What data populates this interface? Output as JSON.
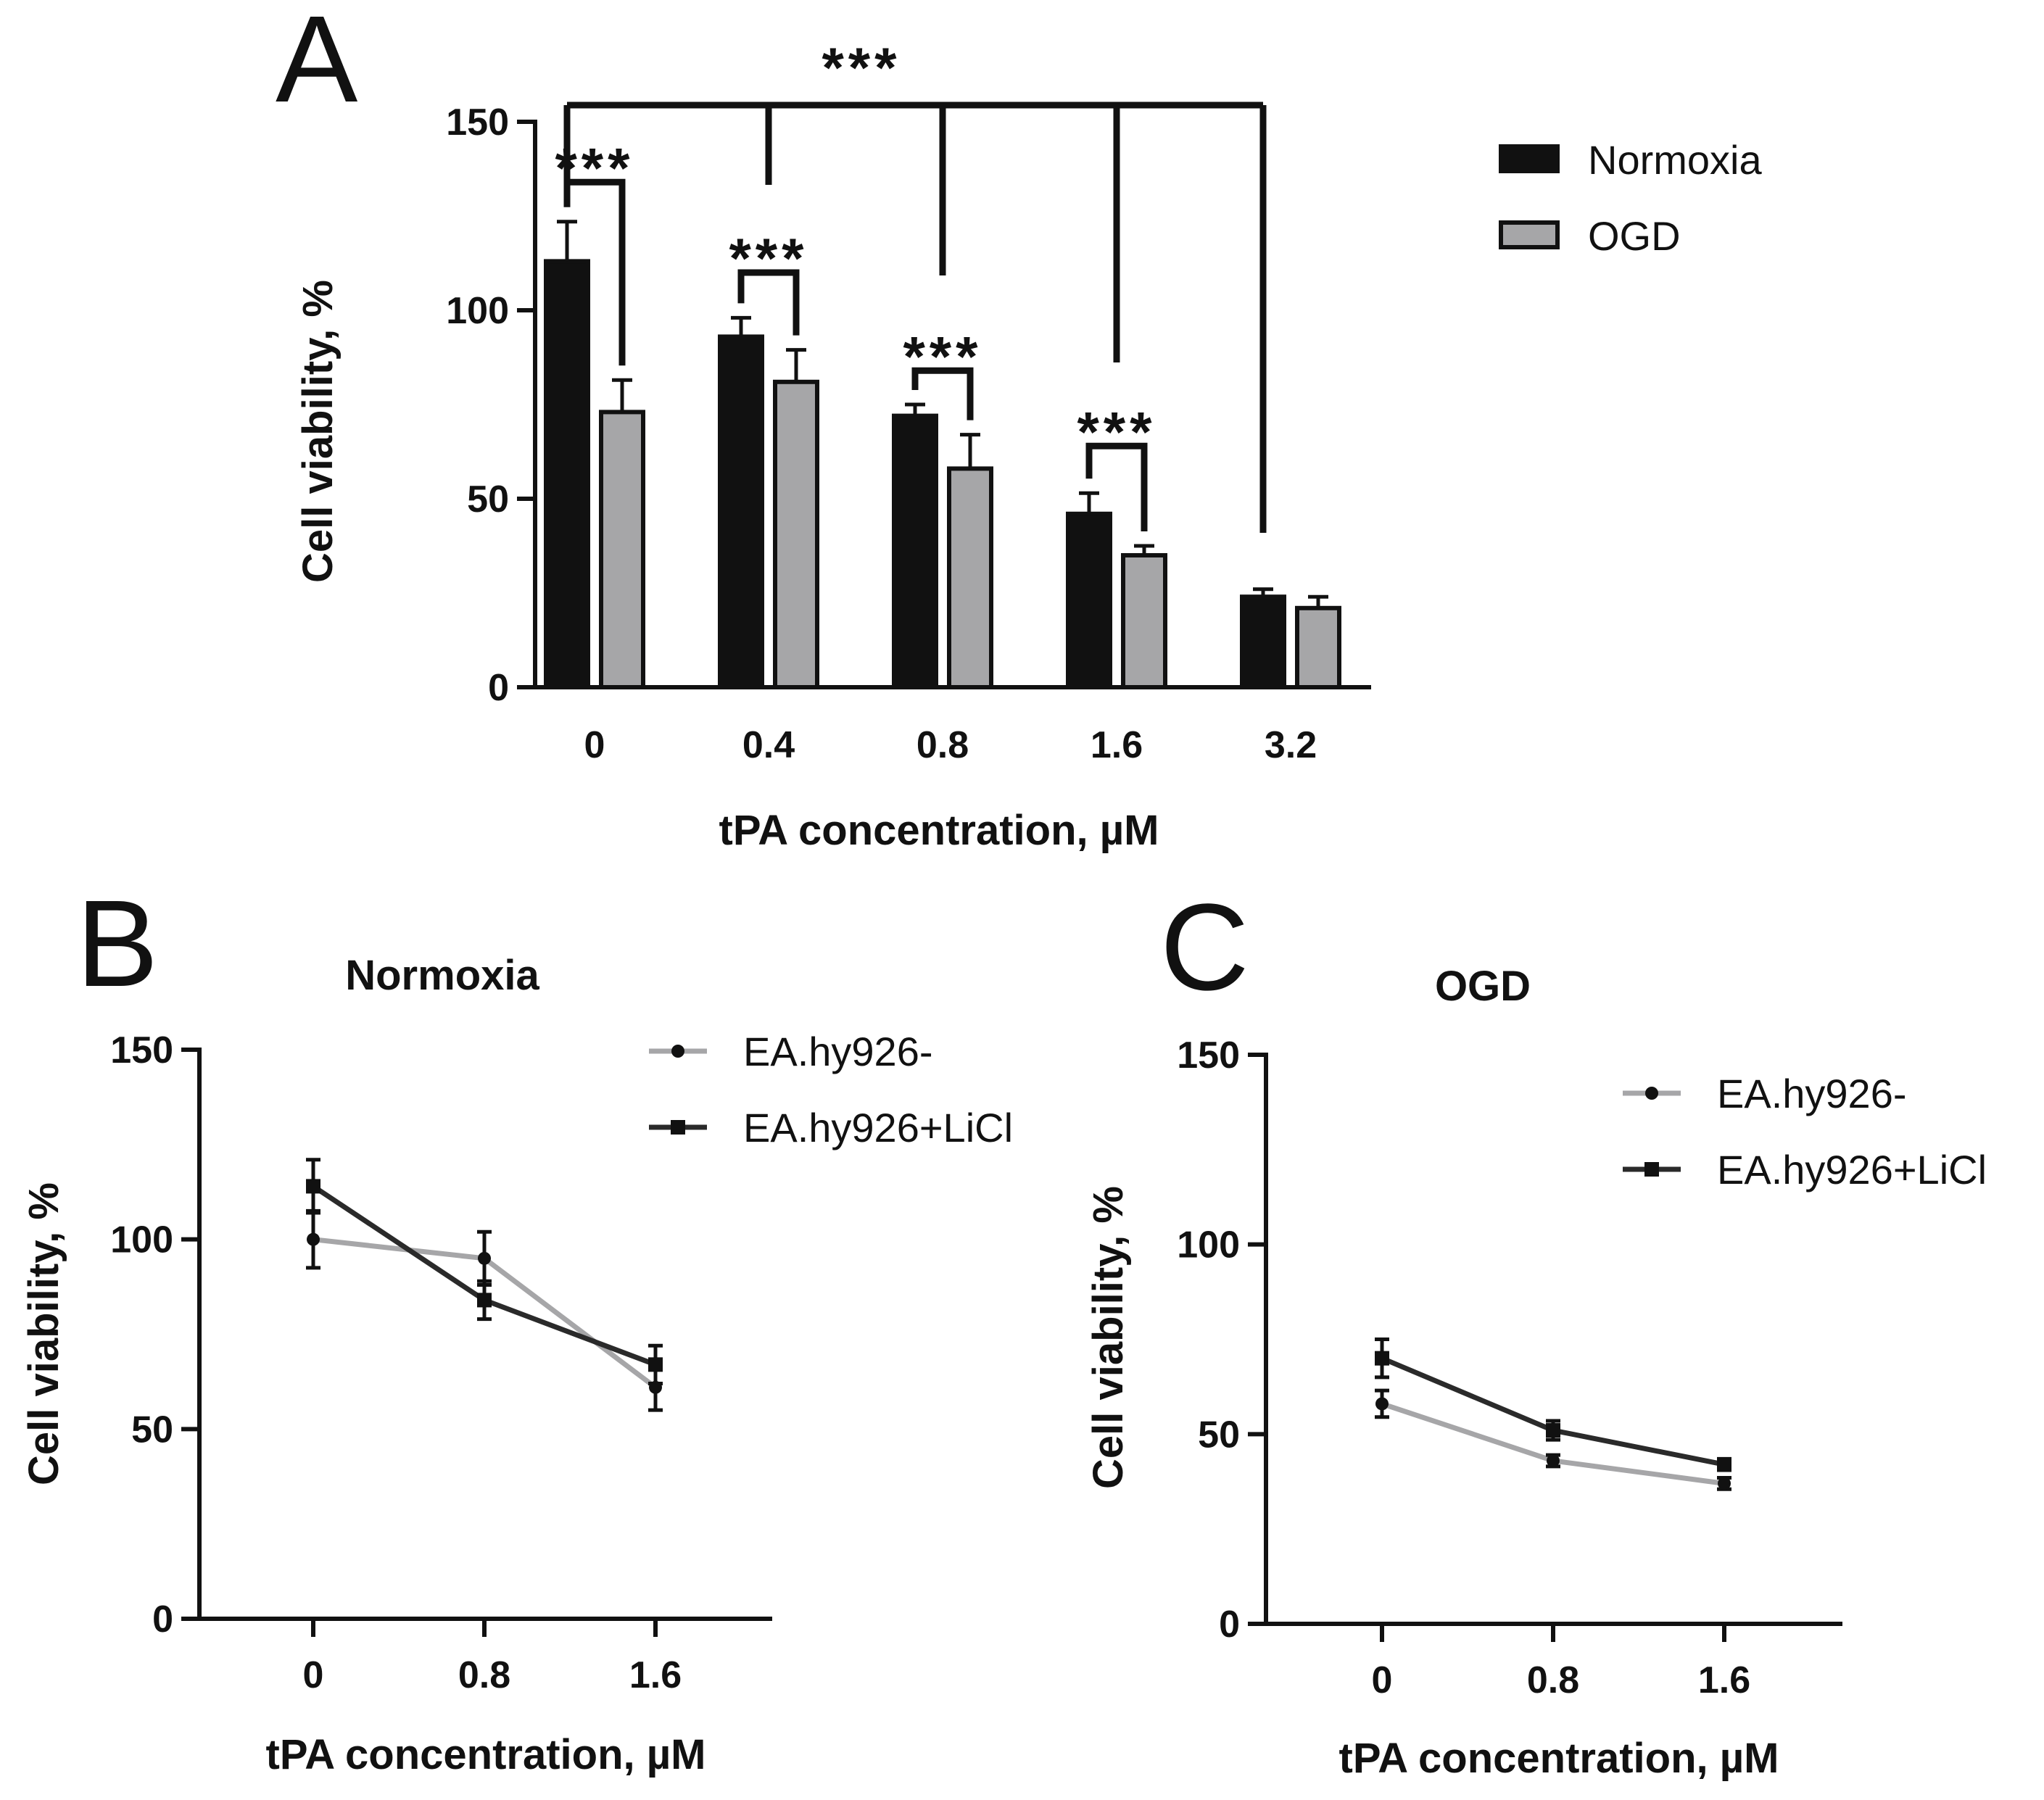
{
  "colors": {
    "normoxia": "#111111",
    "ogd": "#a6a6a8",
    "light_line": "#a6a6a8",
    "dark_line": "#2a2a2a",
    "axis": "#111111"
  },
  "chart_data": [
    {
      "panel": "A",
      "type": "bar",
      "title": "",
      "xlabel": "tPA concentration, µM",
      "ylabel": "Cell viability, %",
      "ylim": [
        0,
        150
      ],
      "yticks": [
        0,
        50,
        100,
        150
      ],
      "categories": [
        "0",
        "0.4",
        "0.8",
        "1.6",
        "3.2"
      ],
      "legend_position": "top-right",
      "series": [
        {
          "name": "Normoxia",
          "values": [
            113,
            93,
            72,
            46,
            24
          ],
          "errors": [
            10.5,
            5,
            3,
            5.5,
            2
          ]
        },
        {
          "name": "OGD",
          "values": [
            73,
            81,
            58,
            35,
            21
          ],
          "errors": [
            8.5,
            8.5,
            9,
            2.5,
            3
          ]
        }
      ],
      "annotations": [
        {
          "label": "***",
          "type": "pair",
          "category": "0",
          "ymin": 134,
          "label_y": 138
        },
        {
          "label": "***",
          "type": "pair",
          "category": "0.4",
          "ymin": 110,
          "label_y": 114
        },
        {
          "label": "***",
          "type": "pair",
          "category": "0.8",
          "ymin": 84,
          "label_y": 88
        },
        {
          "label": "***",
          "type": "pair",
          "category": "1.6",
          "ymin": 64,
          "label_y": 68
        },
        {
          "label": "***",
          "type": "bracket",
          "label_y": 157
        }
      ]
    },
    {
      "panel": "B",
      "type": "line",
      "title": "Normoxia",
      "xlabel": "tPA concentration, µM",
      "ylabel": "Cell viability, %",
      "ylim": [
        0,
        150
      ],
      "yticks": [
        0,
        50,
        100,
        150
      ],
      "x": [
        "0",
        "0.8",
        "1.6"
      ],
      "legend_position": "top-right",
      "series": [
        {
          "name": "EA.hy926-",
          "values": [
            100,
            95,
            61
          ],
          "errors": [
            7.5,
            7,
            6
          ]
        },
        {
          "name": "EA.hy926+LiCl",
          "values": [
            114,
            84,
            67
          ],
          "errors": [
            7,
            5,
            5
          ]
        }
      ]
    },
    {
      "panel": "C",
      "type": "line",
      "title": "OGD",
      "xlabel": "tPA concentration, µM",
      "ylabel": "Cell viability, %",
      "ylim": [
        0,
        150
      ],
      "yticks": [
        0,
        50,
        100,
        150
      ],
      "x": [
        "0",
        "0.8",
        "1.6"
      ],
      "legend_position": "top-right",
      "series": [
        {
          "name": "EA.hy926-",
          "values": [
            58,
            43,
            37
          ],
          "errors": [
            3.5,
            1.5,
            1.5
          ]
        },
        {
          "name": "EA.hy926+LiCl",
          "values": [
            70,
            51,
            42
          ],
          "errors": [
            5,
            2.5,
            1.5
          ]
        }
      ]
    }
  ]
}
